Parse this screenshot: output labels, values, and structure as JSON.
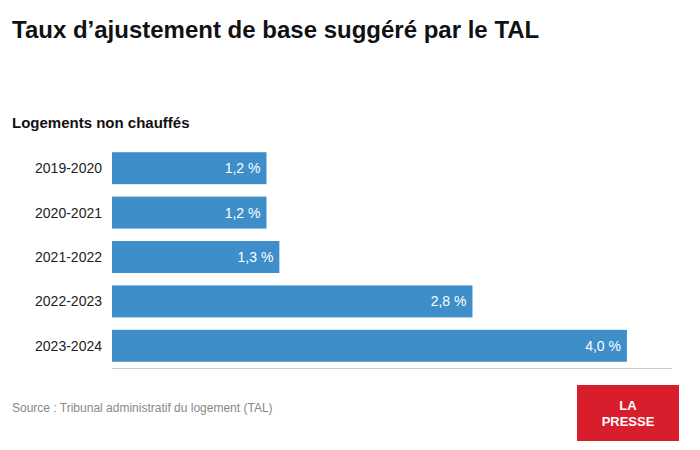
{
  "chart_data": {
    "type": "bar",
    "orientation": "horizontal",
    "title": "Taux d’ajustement de base suggéré par le TAL",
    "subtitle": "Logements non chauffés",
    "categories": [
      "2019-2020",
      "2020-2021",
      "2021-2022",
      "2022-2023",
      "2023-2024"
    ],
    "values": [
      1.2,
      1.2,
      1.3,
      2.8,
      4.0
    ],
    "value_labels": [
      "1,2 %",
      "1,2 %",
      "1,3 %",
      "2,8 %",
      "4,0 %"
    ],
    "data_labels": true,
    "color": "#3d8ec9",
    "xlim": [
      0,
      4.35
    ],
    "tick_labels": "y",
    "grid": false,
    "annotations": [
      {
        "text": "Source : Tribunal administratif du logement (TAL)"
      },
      {
        "text": "LA\nPRESSE",
        "color": "#d81e2c"
      }
    ]
  }
}
